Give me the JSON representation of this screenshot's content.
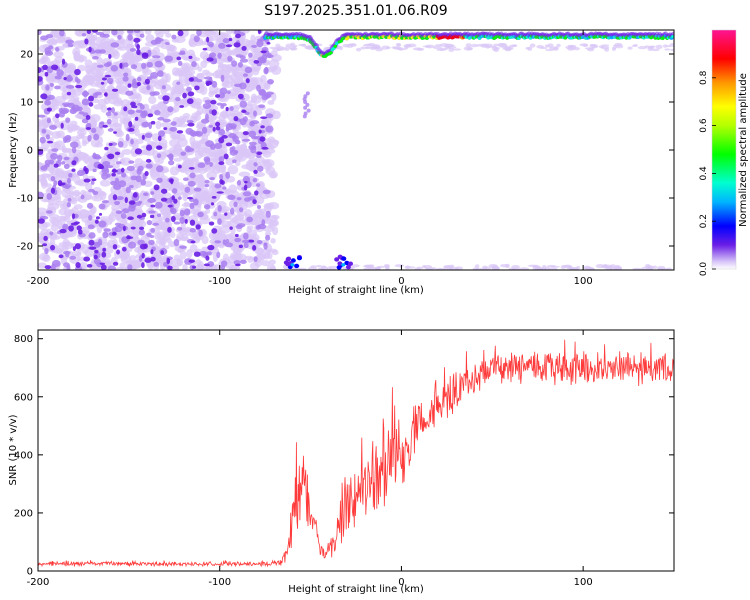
{
  "title": "S197.2025.351.01.06.R09",
  "colors": {
    "snr_line": "#ff3a3a",
    "scatter_light": "#d9c6f7",
    "scatter_mid": "#a97ff0",
    "scatter_dark": "#6a1fe3",
    "frame": "#000000"
  },
  "chart_data": [
    {
      "type": "heatmap",
      "title": "S197.2025.351.01.06.R09",
      "xlabel": "Height of straight line (km)",
      "ylabel": "Frequency (Hz)",
      "xlim": [
        -200,
        150
      ],
      "ylim": [
        -25,
        25
      ],
      "x_ticks": [
        -200,
        -100,
        0,
        100
      ],
      "x_tick_labels": [
        "-200",
        "-100",
        "0",
        "100"
      ],
      "y_ticks": [
        -20,
        -10,
        0,
        10,
        20
      ],
      "y_tick_labels": [
        "-20",
        "-10",
        "0",
        "10",
        "20"
      ],
      "colorbar": {
        "label": "Normalized spectral amplitude",
        "range": [
          0,
          1
        ],
        "ticks": [
          0,
          0.2,
          0.4,
          0.6,
          0.8
        ],
        "tick_labels": [
          "0.0",
          "0.2",
          "0.4",
          "0.6",
          "0.8"
        ]
      },
      "noise_region_x": [
        -200,
        -72
      ],
      "band_top_hz": 23.5,
      "band_bottom_hz": -24.5,
      "band_top_segments": [
        {
          "x_start": -75,
          "x_end": -50,
          "amplitude": 0.35
        },
        {
          "x_start": -50,
          "x_end": -30,
          "amplitude": 0.45
        },
        {
          "x_start": -30,
          "x_end": 20,
          "amplitude": 0.55
        },
        {
          "x_start": 20,
          "x_end": 35,
          "amplitude": 0.95
        },
        {
          "x_start": 35,
          "x_end": 150,
          "amplitude": 0.4
        }
      ],
      "band_dip": {
        "x": -42,
        "min_hz": 19.5
      },
      "faint_blob": {
        "x": -52,
        "y_range": [
          7,
          12
        ]
      },
      "bottom_spots": [
        -60,
        -32
      ]
    },
    {
      "type": "line",
      "title": "",
      "xlabel": "Height of straight line (km)",
      "ylabel": "SNR (10 * v/v)",
      "xlim": [
        -200,
        150
      ],
      "ylim": [
        0,
        830
      ],
      "x_ticks": [
        -200,
        -100,
        0,
        100
      ],
      "x_tick_labels": [
        "-200",
        "-100",
        "0",
        "100"
      ],
      "y_ticks": [
        0,
        200,
        400,
        600,
        800
      ],
      "y_tick_labels": [
        "0",
        "200",
        "400",
        "600",
        "800"
      ],
      "series": [
        {
          "name": "SNR",
          "x": [
            -200,
            -180,
            -160,
            -140,
            -120,
            -100,
            -80,
            -66,
            -62,
            -58,
            -55,
            -52,
            -49,
            -46,
            -43,
            -40,
            -37,
            -34,
            -31,
            -28,
            -25,
            -20,
            -15,
            -10,
            -5,
            0,
            5,
            10,
            15,
            20,
            25,
            30,
            35,
            40,
            45,
            50,
            60,
            70,
            80,
            90,
            100,
            110,
            120,
            130,
            140,
            150
          ],
          "values": [
            25,
            24,
            26,
            25,
            24,
            25,
            25,
            28,
            90,
            250,
            300,
            230,
            200,
            90,
            60,
            70,
            110,
            170,
            210,
            240,
            260,
            300,
            330,
            350,
            390,
            420,
            460,
            500,
            540,
            570,
            600,
            630,
            650,
            670,
            690,
            700,
            705,
            700,
            700,
            705,
            700,
            698,
            702,
            700,
            698,
            700
          ],
          "noise_amplitude": [
            8,
            8,
            8,
            8,
            8,
            8,
            8,
            12,
            50,
            120,
            130,
            120,
            100,
            40,
            25,
            40,
            70,
            90,
            100,
            110,
            120,
            140,
            140,
            140,
            130,
            130,
            120,
            110,
            100,
            90,
            80,
            75,
            65,
            60,
            60,
            60,
            60,
            60,
            60,
            60,
            60,
            60,
            60,
            60,
            60,
            60
          ]
        }
      ]
    }
  ]
}
